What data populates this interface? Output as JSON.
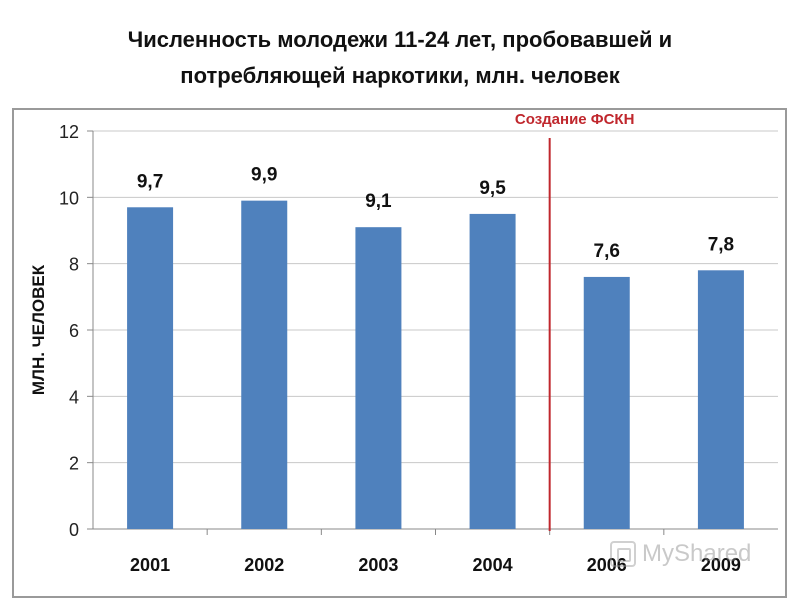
{
  "title_lines": [
    "Численность молодежи 11-24 лет, пробовавшей и",
    "потребляющей наркотики, млн. человек"
  ],
  "chart_data": {
    "type": "bar",
    "title": "Численность молодежи 11-24 лет, пробовавшей и потребляющей наркотики, млн. человек",
    "categories": [
      "2001",
      "2002",
      "2003",
      "2004",
      "2006",
      "2009"
    ],
    "values": [
      9.7,
      9.9,
      9.1,
      9.5,
      7.6,
      7.8
    ],
    "data_labels": [
      "9,7",
      "9,9",
      "9,1",
      "9,5",
      "7,6",
      "7,8"
    ],
    "ylabel": "МЛН. ЧЕЛОВЕК",
    "xlabel": "",
    "ylim": [
      0,
      12
    ],
    "yticks": [
      0,
      2,
      4,
      6,
      8,
      10,
      12
    ],
    "grid": true,
    "legend": "none",
    "bar_color": "#4f81bd",
    "annotation": {
      "text": "Создание ФСКН",
      "position_between": [
        "2004",
        "2006"
      ],
      "color": "#c0272d"
    }
  },
  "watermark": {
    "text": "MyShared",
    "icon": "myshared-logo-icon"
  }
}
